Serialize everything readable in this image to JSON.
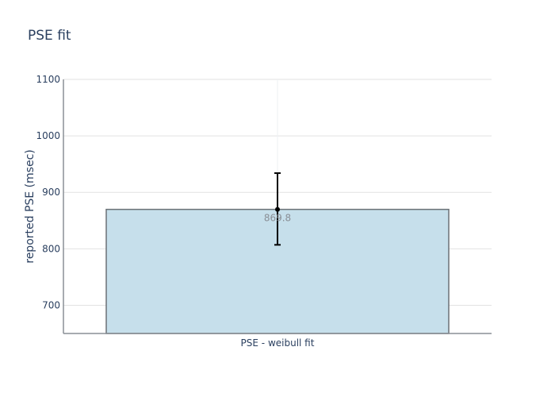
{
  "chart_data": {
    "type": "bar",
    "title": "PSE fit",
    "xlabel": "",
    "ylabel": "reported PSE (msec)",
    "categories": [
      "PSE - weibull fit"
    ],
    "values": [
      869.8
    ],
    "value_labels": [
      "869.8"
    ],
    "error": {
      "upper": [
        934
      ],
      "lower": [
        807
      ]
    },
    "ylim": [
      650,
      1100
    ],
    "yticks": [
      700,
      800,
      900,
      1000,
      1100
    ],
    "ytick_labels": [
      "700",
      "800",
      "900",
      "1000",
      "1100"
    ],
    "grid": true,
    "colors": {
      "bar_fill": "#c6dfeb",
      "bar_stroke": "#6b7177",
      "error_bar": "#000000",
      "grid": "#e2e2e2",
      "axis": "#8a8f96",
      "text": "#2a3f5f",
      "value_label": "#8a8f96"
    }
  }
}
